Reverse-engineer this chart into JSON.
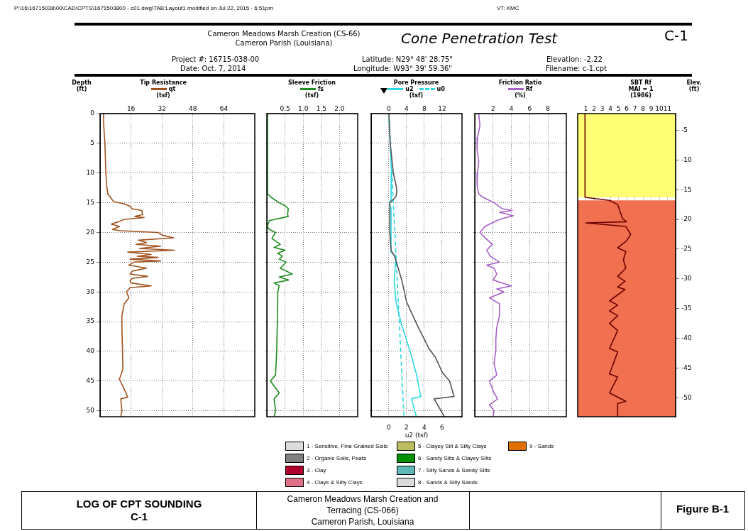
{
  "chart_data": [
    {
      "type": "other",
      "title": "Cone Penetration Test",
      "annotations": [
        "P:\\16\\16715038\\00\\CAD\\CPTS\\1671503800 - c01.dwg\\TAB:Layout1 modified on Jul 22, 2015 - 6:51pm",
        "VT: KMC",
        "Cameron Meadows Marsh Creation (CS-66)",
        "Cameron Parish (Louisiana)",
        "C-1",
        "Project #: 16715-038-00",
        "Date: Oct. 7, 2014",
        "Latitude: N29° 48' 28.75\"",
        "Longitude: W93° 39' 59.36\"",
        "Elevation: -2.22",
        "Filename: c-1.cpt"
      ]
    },
    {
      "type": "line",
      "title": "Tip Resistance",
      "xlabel": "(tsf)",
      "ylabel": "Depth (ft)",
      "legend": "top",
      "grid": true,
      "xlim": [
        0,
        80
      ],
      "xticks": [
        16,
        32,
        48,
        64
      ],
      "ylim": [
        51,
        0
      ],
      "yticks": [
        0,
        5,
        10,
        15,
        20,
        25,
        30,
        35,
        40,
        45,
        50
      ],
      "series": [
        {
          "name": "qt",
          "color": "#a0521e",
          "x": [
            1.8,
            1.9,
            2.5,
            2.8,
            3,
            3.4,
            4,
            7,
            12.5,
            15.5,
            16.5,
            21.6,
            22,
            18,
            22.8,
            12.5,
            9.5,
            5.8,
            10,
            6.4,
            10.7,
            30,
            32.5,
            38,
            19.8,
            24,
            18.5,
            31.3,
            20.4,
            38.5,
            14.3,
            26.4,
            19.2,
            30,
            15.5,
            31.3,
            17.3,
            14.9,
            24,
            16.7,
            15.5,
            24.6,
            16.7,
            15.5,
            16,
            26.4,
            15.5,
            13.7,
            14.9,
            12.5,
            11.3,
            11.3,
            11.6,
            11.8,
            10,
            12,
            14.3,
            10.7,
            11.3,
            10.7
          ],
          "values": [
            0,
            2,
            5,
            8,
            10,
            12,
            13.5,
            14.8,
            15.2,
            15.6,
            16,
            16.3,
            17,
            17.3,
            17.5,
            17.8,
            18.2,
            18.6,
            19,
            19.5,
            19.7,
            20,
            20.5,
            20.9,
            21.3,
            21.7,
            22,
            22.3,
            22.7,
            23,
            23.3,
            23.7,
            24,
            24.2,
            24.5,
            24.8,
            25,
            25.5,
            26,
            26.5,
            27,
            27.4,
            27.7,
            28.1,
            28.5,
            29,
            29.3,
            30,
            31,
            32,
            34,
            36,
            40,
            43,
            44.7,
            46,
            47.7,
            48,
            50,
            51
          ]
        }
      ]
    },
    {
      "type": "line",
      "title": "Sleeve Friction",
      "xlabel": "(tsf)",
      "legend": "top",
      "grid": true,
      "tick_labels": "x",
      "xlim": [
        0,
        2.5
      ],
      "xticks": [
        {
          "value": 0.5,
          "label": "0.5"
        },
        {
          "value": 1,
          "label": "1.0"
        },
        {
          "value": 1.5,
          "label": "1.5"
        },
        {
          "value": 2,
          "label": "2.0"
        }
      ],
      "ylim": [
        51,
        0
      ],
      "yticks": [
        0,
        5,
        10,
        15,
        20,
        25,
        30,
        35,
        40,
        45,
        50
      ],
      "series": [
        {
          "name": "fs",
          "color": "#1e8c1e",
          "x": [
            0.02,
            0.02,
            0.1,
            0.34,
            0.5,
            0.59,
            0.57,
            0.59,
            0.07,
            0.01,
            0.07,
            0.24,
            0.14,
            0.37,
            0.2,
            0.5,
            0.3,
            0.43,
            0.34,
            0.53,
            0.37,
            0.7,
            0.34,
            0.6,
            0.2,
            0.34,
            0.3,
            0.3,
            0.29,
            0.27,
            0.24,
            0.1,
            0.34,
            0.2,
            0.24,
            0.2
          ],
          "values": [
            0,
            13.5,
            14,
            15,
            15.5,
            16,
            17,
            17.3,
            18,
            19,
            19.5,
            20,
            21,
            22,
            22.5,
            23,
            23.5,
            24,
            24.5,
            25,
            26,
            27,
            27.5,
            28,
            28.5,
            29,
            30,
            32,
            35,
            40,
            44,
            45,
            47,
            48,
            50,
            51
          ]
        }
      ]
    },
    {
      "type": "line",
      "title": "Pore Pressure",
      "xlabel": "(tsf)",
      "x2label": "u2 (tsf)",
      "legend": "top",
      "grid": true,
      "tick_labels": "x",
      "xlim": [
        -4,
        16.5
      ],
      "xticks": [
        0,
        4,
        8,
        12
      ],
      "x2lim": [
        -2,
        8.25
      ],
      "x2ticks": [
        0,
        2,
        4,
        6
      ],
      "ylim": [
        51,
        0
      ],
      "yticks": [
        0,
        5,
        10,
        15,
        20,
        25,
        30,
        35,
        40,
        45,
        50
      ],
      "series": [
        {
          "color": "#555555",
          "x": [
            0,
            0.3,
            1,
            1.6,
            1.8,
            1.6,
            0.2,
            0.2,
            0.5,
            1.3,
            2.1,
            2.9,
            3.5,
            4,
            6.4,
            9.1,
            10.5,
            12.1,
            13.7,
            14.7,
            10.2,
            11,
            12.5
          ],
          "values": [
            0,
            5,
            10,
            12,
            13,
            14,
            15,
            20,
            23,
            24,
            26,
            28,
            30,
            31.7,
            35.6,
            39.6,
            41,
            43.6,
            45,
            47.6,
            48,
            49,
            51
          ]
        },
        {
          "name": "u2",
          "color": "#2ed8e0",
          "x": [
            0,
            0.6,
            0.5,
            0.1,
            0.5,
            0.5,
            1.6,
            1.2,
            1.6,
            2.9,
            4.8,
            6.2,
            7.2,
            5.1,
            6.2
          ],
          "values": [
            0,
            10,
            14.5,
            15,
            16,
            23.3,
            24,
            28,
            31.7,
            35.6,
            40,
            43.8,
            47.6,
            48,
            51
          ]
        },
        {
          "name": "u0",
          "color": "#2ed8e0",
          "line_style": "dashed",
          "x": [
            0,
            3.4
          ],
          "values": [
            0,
            51
          ]
        }
      ]
    },
    {
      "type": "line",
      "title": "Friction Ratio",
      "xlabel": "(%)",
      "legend": "top",
      "grid": true,
      "tick_labels": "x",
      "xlim": [
        0,
        10
      ],
      "xticks": [
        2,
        4,
        6,
        8
      ],
      "ylim": [
        51,
        0
      ],
      "yticks": [
        0,
        5,
        10,
        15,
        20,
        25,
        30,
        35,
        40,
        45,
        50
      ],
      "series": [
        {
          "name": "Rf",
          "color": "#a660c8",
          "x": [
            0.43,
            0.56,
            0.3,
            0.25,
            0.43,
            0.3,
            0.25,
            0.43,
            0.8,
            2.1,
            3,
            4.1,
            2.7,
            4.2,
            2.9,
            2.4,
            1.1,
            0.56,
            1.2,
            1.9,
            1.3,
            1.7,
            2.7,
            1.3,
            2.1,
            2.4,
            2,
            4,
            2.4,
            3.2,
            1.6,
            2.7,
            2.7,
            2.4,
            2.3,
            2.3,
            2.1,
            2.4,
            1.6,
            2.1,
            2.5,
            1.6,
            2.1,
            2
          ],
          "values": [
            0,
            2,
            4,
            6,
            8,
            10,
            12,
            13.5,
            14,
            15,
            16,
            16.3,
            16.6,
            17.2,
            17.7,
            18,
            19,
            20,
            21,
            22,
            23,
            24,
            25,
            25.5,
            26,
            27,
            28,
            29,
            29.5,
            30,
            31,
            32,
            34,
            36,
            38,
            40,
            42,
            44,
            45,
            47,
            48,
            49,
            50,
            51
          ]
        }
      ]
    },
    {
      "type": "line",
      "title": "SBT Rf",
      "subtitle": "MAI = 1",
      "xlabel": "(1986)",
      "ylabel": "Elev. (ft)",
      "grid": true,
      "xlim": [
        0,
        12
      ],
      "xticks": [
        1,
        2,
        3,
        4,
        5,
        6,
        7,
        8,
        9,
        10,
        11
      ],
      "ylim": [
        -53.2,
        -2.2
      ],
      "yticks": [
        -5,
        -10,
        -15,
        -20,
        -25,
        -30,
        -35,
        -40,
        -45,
        -50
      ],
      "bands": [
        {
          "axis": "y",
          "from": -2.2,
          "to": -16.3,
          "color": "#ffff73"
        },
        {
          "axis": "y",
          "from": -16.8,
          "to": -53.2,
          "color": "#f07050"
        }
      ],
      "series": [
        {
          "color": "#6b0000",
          "x": [
            0.9,
            0.9,
            3.9,
            4.9,
            5.5,
            6,
            1,
            5.9,
            6.5,
            6,
            4.9,
            5.9,
            5.6,
            5.9,
            4.9,
            5.8,
            4.9,
            5.8,
            3.9,
            4.9,
            3.9,
            4.9,
            3.9,
            4.9,
            3.9,
            4.9,
            3.9,
            4.9,
            3.9,
            5.9,
            4.9,
            4.9
          ],
          "values": [
            -2.2,
            -16.3,
            -16.8,
            -17.5,
            -19.9,
            -20.4,
            -20.6,
            -21.2,
            -22.5,
            -23.6,
            -24.8,
            -25.4,
            -26.8,
            -28.2,
            -29.6,
            -30.4,
            -31.4,
            -31.8,
            -33.7,
            -34.4,
            -35.4,
            -36.2,
            -37.5,
            -38.7,
            -41.7,
            -42.3,
            -46,
            -46.5,
            -49.2,
            -50.6,
            -51,
            -53.2
          ]
        }
      ]
    },
    {
      "type": "other",
      "categories": [
        "1 - Sensitive, Fine Grained Soils",
        "2 - Organic Soils, Peats",
        "3 - Clay",
        "4 - Clays & Silty Clays",
        "5 - Clayey Silt & Silty Clays",
        "6 - Sandy Silts & Clayey Silts",
        "7 - Silty Sands & Sandy Silts",
        "8 - Sands & Silty Sands",
        "9 - Sands"
      ],
      "colors": [
        "#dcdcdc",
        "#808080",
        "#b0002c",
        "#e07088",
        "#bcbc60",
        "#009000",
        "#60b8b8",
        "#dcdcdc",
        "#e07000"
      ]
    },
    {
      "type": "other",
      "annotations": [
        "LOG OF CPT SOUNDING",
        "C-1",
        "Cameron Meadows Marsh Creation and",
        "Terracing (CS-066)",
        "Cameron Parish, Louisiana",
        "Figure B-1"
      ]
    }
  ]
}
